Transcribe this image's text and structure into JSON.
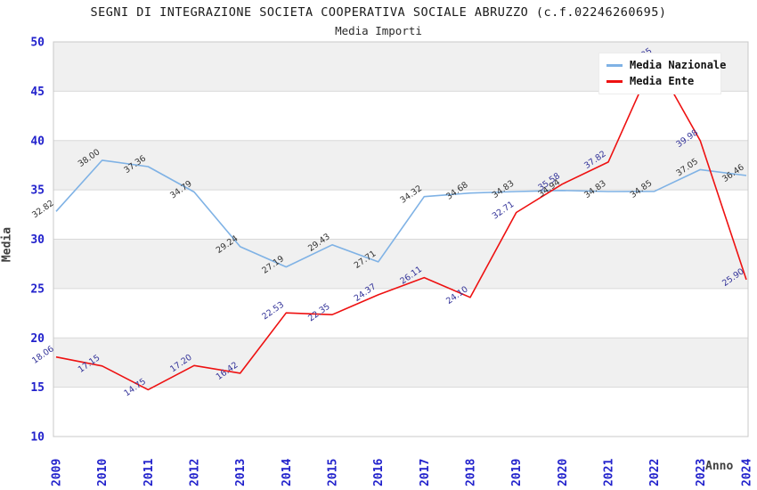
{
  "header": {
    "title": "SEGNI DI INTEGRAZIONE SOCIETA COOPERATIVA SOCIALE ABRUZZO (c.f.02246260695)",
    "subtitle": "Media Importi"
  },
  "axes": {
    "y_label": "Media",
    "x_label": "Anno"
  },
  "legend": {
    "items": [
      {
        "label": "Media Nazionale",
        "color": "#7fb2e5"
      },
      {
        "label": "Media Ente",
        "color": "#ee1111"
      }
    ]
  },
  "colors": {
    "tick_label": "#2222cc",
    "band_gray": "#f0f0f0",
    "gridline": "#d9d9d9",
    "plot_border": "#c8c8c8",
    "national_line": "#7fb2e5",
    "national_point_label": "#333333",
    "ente_line": "#ee1111",
    "ente_point_label": "#333399"
  },
  "chart_data": {
    "type": "line",
    "title": "SEGNI DI INTEGRAZIONE SOCIETA COOPERATIVA SOCIALE ABRUZZO (c.f.02246260695)",
    "subtitle": "Media Importi",
    "xlabel": "Anno",
    "ylabel": "Media",
    "categories": [
      "2009",
      "2010",
      "2011",
      "2012",
      "2013",
      "2014",
      "2015",
      "2016",
      "2017",
      "2018",
      "2019",
      "2020",
      "2021",
      "2022",
      "2023",
      "2024"
    ],
    "series": [
      {
        "name": "Media Nazionale",
        "color": "#7fb2e5",
        "label_color": "#333333",
        "values": [
          32.82,
          38.0,
          37.36,
          34.79,
          29.24,
          27.19,
          29.43,
          27.71,
          34.32,
          34.68,
          34.83,
          34.94,
          34.83,
          34.85,
          37.05,
          36.46
        ]
      },
      {
        "name": "Media Ente",
        "color": "#ee1111",
        "label_color": "#333399",
        "values": [
          18.06,
          17.15,
          14.75,
          17.2,
          16.42,
          22.53,
          22.35,
          24.37,
          26.11,
          24.1,
          32.71,
          35.58,
          37.82,
          48.25,
          39.98,
          25.9
        ]
      }
    ],
    "ylim": [
      10,
      50
    ],
    "yticks": [
      10,
      15,
      20,
      25,
      30,
      35,
      40,
      45,
      50
    ],
    "grid": "horizontal gridlines with alternating gray/white bands",
    "legend_position": "top-right",
    "point_labels": "each point labeled with value, rotated ~35 degrees"
  }
}
